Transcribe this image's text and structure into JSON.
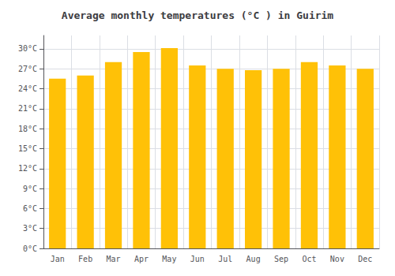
{
  "chart_data": {
    "type": "bar",
    "title": "Average monthly temperatures (°C ) in Guirim",
    "categories": [
      "Jan",
      "Feb",
      "Mar",
      "Apr",
      "May",
      "Jun",
      "Jul",
      "Aug",
      "Sep",
      "Oct",
      "Nov",
      "Dec"
    ],
    "values": [
      25.5,
      26.0,
      28.0,
      29.5,
      30.1,
      27.5,
      27.0,
      26.8,
      27.0,
      28.0,
      27.5,
      27.0
    ],
    "color": "#FFC107",
    "ylim": [
      0,
      32
    ],
    "yticks": [
      {
        "value": 0,
        "label": "0°C"
      },
      {
        "value": 3,
        "label": "3°C"
      },
      {
        "value": 6,
        "label": "6°C"
      },
      {
        "value": 9,
        "label": "9°C"
      },
      {
        "value": 12,
        "label": "12°C"
      },
      {
        "value": 15,
        "label": "15°C"
      },
      {
        "value": 18,
        "label": "18°C"
      },
      {
        "value": 21,
        "label": "21°C"
      },
      {
        "value": 24,
        "label": "24°C"
      },
      {
        "value": 27,
        "label": "27°C"
      },
      {
        "value": 30,
        "label": "30°C"
      }
    ],
    "grid": true
  }
}
